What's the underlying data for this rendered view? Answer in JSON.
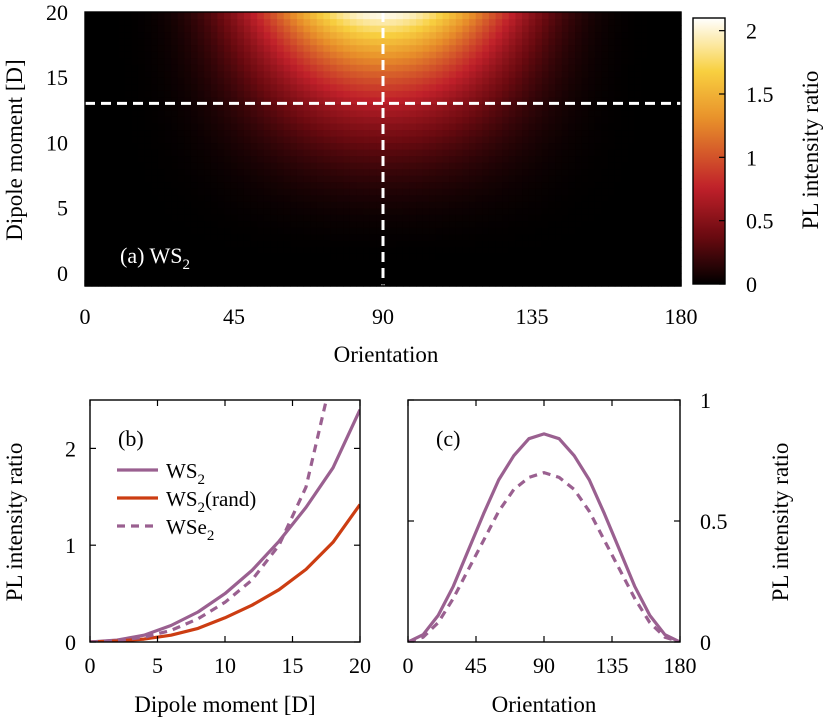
{
  "chart_data": [
    {
      "panel": "a",
      "type": "heatmap",
      "annotation": "(a) WS",
      "annotation_sub": "2",
      "xlabel": "Orientation",
      "ylabel": "Dipole moment [D]",
      "xlim": [
        0,
        180
      ],
      "ylim": [
        -1,
        20
      ],
      "xticks": [
        "0",
        "45",
        "90",
        "135",
        "180"
      ],
      "yticks": [
        "0",
        "5",
        "10",
        "15",
        "20"
      ],
      "colorbar": {
        "label": "PL intensity ratio",
        "range": [
          0,
          2.1
        ],
        "ticks": [
          "0",
          "0.5",
          "1",
          "1.5",
          "2"
        ],
        "colors": [
          "#000000",
          "#6b0a10",
          "#c0202a",
          "#e8902a",
          "#f8d040",
          "#ffffff"
        ]
      },
      "model": "ratio = 2.1 * sin(orientation)^4 * (dipole/20)^2.5",
      "cuts": {
        "orientation": 90,
        "dipole": 13
      }
    },
    {
      "panel": "b",
      "type": "line",
      "annotation": "(b)",
      "xlabel": "Dipole moment [D]",
      "ylabel": "PL intensity ratio",
      "xlim": [
        0,
        20
      ],
      "ylim": [
        0,
        2.5
      ],
      "xticks": [
        "0",
        "5",
        "10",
        "15",
        "20"
      ],
      "yticks": [
        "0",
        "1",
        "2"
      ],
      "legend": [
        {
          "label": "WS",
          "sub": "2",
          "suffix": "",
          "color": "#9a6090",
          "dash": false
        },
        {
          "label": "WS",
          "sub": "2",
          "suffix": "(rand)",
          "color": "#cc3d12",
          "dash": false
        },
        {
          "label": "WSe",
          "sub": "2",
          "suffix": "",
          "color": "#9a6090",
          "dash": true
        }
      ],
      "series": [
        {
          "name": "WS2",
          "color": "#9a6090",
          "dash": false,
          "x": [
            0,
            2,
            4,
            6,
            8,
            10,
            12,
            14,
            16,
            18,
            20
          ],
          "y": [
            0,
            0.02,
            0.07,
            0.17,
            0.31,
            0.5,
            0.74,
            1.04,
            1.39,
            1.8,
            2.4
          ]
        },
        {
          "name": "WS2(rand)",
          "color": "#cc3d12",
          "dash": false,
          "x": [
            0,
            2,
            4,
            6,
            8,
            10,
            12,
            14,
            16,
            18,
            20
          ],
          "y": [
            0,
            0.01,
            0.03,
            0.07,
            0.14,
            0.25,
            0.38,
            0.54,
            0.75,
            1.03,
            1.42
          ]
        },
        {
          "name": "WSe2",
          "color": "#9a6090",
          "dash": true,
          "x": [
            0,
            2,
            4,
            6,
            8,
            10,
            12,
            14,
            16,
            17.5
          ],
          "y": [
            0,
            0.015,
            0.05,
            0.12,
            0.24,
            0.41,
            0.64,
            1.0,
            1.6,
            2.5
          ]
        }
      ]
    },
    {
      "panel": "c",
      "type": "line",
      "annotation": "(c)",
      "xlabel": "Orientation",
      "ylabel": "PL intensity ratio",
      "xlim": [
        0,
        180
      ],
      "ylim": [
        0,
        1
      ],
      "xticks": [
        "0",
        "45",
        "90",
        "135",
        "180"
      ],
      "yticks": [
        "0",
        "0.5",
        "1"
      ],
      "series": [
        {
          "name": "WS2",
          "color": "#9a6090",
          "dash": false,
          "x": [
            0,
            10,
            20,
            30,
            40,
            50,
            60,
            70,
            80,
            90,
            100,
            110,
            120,
            130,
            140,
            150,
            160,
            170,
            180
          ],
          "y": [
            0,
            0.03,
            0.11,
            0.23,
            0.38,
            0.53,
            0.67,
            0.77,
            0.84,
            0.86,
            0.84,
            0.77,
            0.67,
            0.53,
            0.38,
            0.23,
            0.11,
            0.03,
            0
          ]
        },
        {
          "name": "WSe2",
          "color": "#9a6090",
          "dash": true,
          "x": [
            0,
            10,
            20,
            30,
            40,
            50,
            60,
            70,
            80,
            90,
            100,
            110,
            120,
            130,
            140,
            150,
            160,
            170,
            180
          ],
          "y": [
            0,
            0.02,
            0.08,
            0.18,
            0.3,
            0.42,
            0.54,
            0.63,
            0.68,
            0.7,
            0.68,
            0.63,
            0.54,
            0.42,
            0.3,
            0.18,
            0.08,
            0.02,
            0
          ]
        }
      ]
    }
  ]
}
